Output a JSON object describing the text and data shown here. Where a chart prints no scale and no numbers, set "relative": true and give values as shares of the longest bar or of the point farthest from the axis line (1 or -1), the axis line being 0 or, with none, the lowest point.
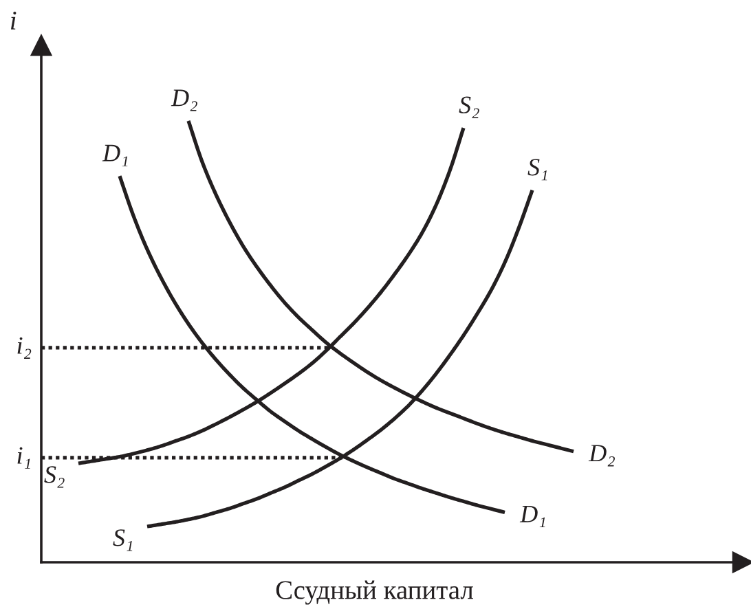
{
  "chart_data": {
    "type": "line",
    "relative": true,
    "xlabel": "Ссудный капитал",
    "ylabel": "i",
    "categories": [
      null,
      null,
      null,
      null,
      null,
      null,
      null,
      null,
      null,
      null,
      null,
      null,
      null,
      null,
      null,
      null,
      null,
      null,
      null,
      null,
      null,
      null,
      null,
      null,
      null,
      null,
      null,
      null,
      null,
      null,
      null,
      null,
      null,
      null,
      null,
      null,
      null,
      null,
      null,
      null,
      null,
      null,
      null,
      null,
      null,
      null,
      null,
      null,
      null,
      null,
      null
    ],
    "series": [
      {
        "name": "D₁",
        "color": "#231f20",
        "values": [
          null,
          null,
          null,
          null,
          null,
          0.875,
          0.785,
          0.709,
          0.645,
          0.589,
          0.54,
          0.497,
          0.459,
          0.425,
          0.394,
          0.367,
          0.341,
          0.319,
          0.298,
          0.279,
          0.261,
          0.244,
          0.229,
          0.215,
          0.202,
          0.189,
          0.178,
          0.167,
          0.157,
          0.147,
          0.138,
          0.129,
          0.121,
          0.113,
          null,
          null,
          null,
          null,
          null,
          null,
          null,
          null,
          null,
          null,
          null,
          null,
          null,
          null,
          null,
          null,
          null
        ]
      },
      {
        "name": "D₂",
        "color": "#231f20",
        "values": [
          null,
          null,
          null,
          null,
          null,
          null,
          null,
          null,
          null,
          null,
          1.0,
          0.907,
          0.833,
          0.77,
          0.715,
          0.668,
          0.626,
          0.588,
          0.555,
          0.526,
          0.498,
          0.474,
          0.452,
          0.431,
          0.412,
          0.395,
          0.379,
          0.364,
          0.35,
          0.338,
          0.326,
          0.314,
          0.303,
          0.293,
          0.284,
          0.275,
          0.267,
          0.259,
          0.251,
          null,
          null,
          null,
          null,
          null,
          null,
          null,
          null,
          null,
          null,
          null,
          null
        ]
      },
      {
        "name": "S₂",
        "color": "#231f20",
        "values": [
          null,
          null,
          0.224,
          0.229,
          0.234,
          0.239,
          0.246,
          0.254,
          0.263,
          0.274,
          0.285,
          0.298,
          0.313,
          0.329,
          0.346,
          0.364,
          0.384,
          0.405,
          0.427,
          0.451,
          0.479,
          0.51,
          0.541,
          0.575,
          0.612,
          0.653,
          0.697,
          0.747,
          0.809,
          0.887,
          0.984,
          null,
          null,
          null,
          null,
          null,
          null,
          null,
          null,
          null,
          null,
          null,
          null,
          null,
          null,
          null,
          null,
          null,
          null,
          null,
          null
        ]
      },
      {
        "name": "S₁",
        "color": "#231f20",
        "values": [
          null,
          null,
          null,
          null,
          null,
          null,
          null,
          0.081,
          0.086,
          0.091,
          0.097,
          0.104,
          0.113,
          0.122,
          0.133,
          0.144,
          0.157,
          0.17,
          0.185,
          0.2,
          0.217,
          0.235,
          0.255,
          0.277,
          0.3,
          0.326,
          0.355,
          0.389,
          0.427,
          0.469,
          0.514,
          0.563,
          0.616,
          0.679,
          0.756,
          0.843,
          null,
          null,
          null,
          null,
          null,
          null,
          null,
          null,
          null,
          null,
          null,
          null,
          null,
          null,
          null
        ]
      }
    ],
    "ref_lines": [
      {
        "axis": "y",
        "value": 0.486,
        "label": "i₂",
        "color": "#231f20",
        "line_style": "dotted"
      },
      {
        "axis": "y",
        "value": 0.237,
        "label": "i₁",
        "color": "#231f20",
        "line_style": "dotted"
      }
    ]
  }
}
